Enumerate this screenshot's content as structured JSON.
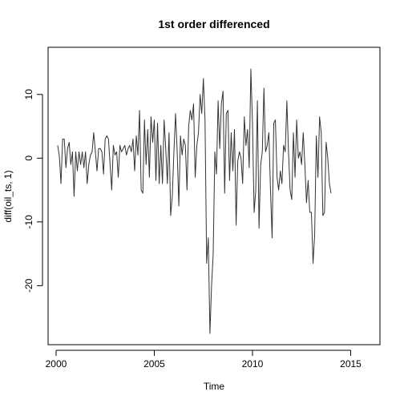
{
  "chart_data": {
    "type": "line",
    "title": "1st order differenced",
    "xlabel": "Time",
    "ylabel": "diff(oil_ts, 1)",
    "xlim": [
      2000,
      2016
    ],
    "ylim": [
      -28,
      15
    ],
    "x_ticks": [
      2000,
      2005,
      2010,
      2015
    ],
    "y_ticks": [
      -20,
      -10,
      0,
      10
    ],
    "x_tick_labels": [
      "2000",
      "2005",
      "2010",
      "2015"
    ],
    "y_tick_labels": [
      "-20",
      "-10",
      "0",
      "10"
    ],
    "grid": false,
    "legend": "none",
    "line_color": "#333333",
    "series": [
      {
        "start": 2000.083,
        "frequency": 12,
        "values": [
          2.0,
          0.3,
          -4.0,
          3.0,
          3.0,
          -1.5,
          1.5,
          2.5,
          -1.0,
          1.0,
          -6.0,
          1.0,
          -2.0,
          1.0,
          -1.0,
          1.0,
          -1.5,
          1.0,
          -4.0,
          -1.0,
          0.5,
          1.0,
          4.0,
          1.0,
          -2.0,
          1.5,
          1.5,
          1.0,
          -2.5,
          3.0,
          3.5,
          3.0,
          -1.0,
          -5.0,
          2.0,
          0.5,
          1.0,
          -3.0,
          2.0,
          1.0,
          1.5,
          2.0,
          0.5,
          1.5,
          2.0,
          1.0,
          3.0,
          -2.0,
          3.5,
          0.5,
          7.5,
          -5.0,
          -5.5,
          6.0,
          -1.0,
          4.5,
          -3.0,
          6.5,
          2.5,
          6.0,
          -3.5,
          5.5,
          -4.0,
          2.0,
          -4.0,
          6.0,
          1.5,
          -4.0,
          4.0,
          -9.0,
          -6.0,
          1.0,
          7.0,
          1.0,
          -7.5,
          3.5,
          0.5,
          3.0,
          2.0,
          -5.0,
          5.0,
          7.5,
          6.0,
          8.5,
          -3.0,
          2.0,
          4.0,
          10.0,
          7.0,
          12.5,
          6.0,
          -16.5,
          -12.5,
          -27.5,
          -20.0,
          -15.0,
          1.0,
          -2.5,
          9.0,
          1.5,
          8.5,
          10.5,
          -5.5,
          7.0,
          7.5,
          -3.5,
          4.0,
          -2.0,
          4.5,
          -10.5,
          -0.5,
          1.0,
          0.0,
          -4.0,
          6.5,
          2.0,
          4.5,
          -1.5,
          14.0,
          5.5,
          -8.5,
          -5.0,
          9.0,
          -11.0,
          -1.0,
          1.0,
          11.0,
          1.0,
          2.0,
          4.0,
          -5.0,
          -12.5,
          5.5,
          6.0,
          -3.0,
          -5.0,
          -2.0,
          -4.0,
          2.0,
          1.0,
          9.0,
          1.0,
          -5.0,
          -6.5,
          4.0,
          -3.0,
          6.0,
          0.0,
          1.0,
          -1.0,
          4.0,
          -1.0,
          -7.0,
          -3.5,
          -8.5,
          -8.5,
          -16.5,
          -12.0,
          3.5,
          -3.0,
          6.5,
          4.0,
          -9.0,
          -8.5,
          2.5,
          0.0,
          -4.0,
          -5.5
        ]
      }
    ]
  }
}
